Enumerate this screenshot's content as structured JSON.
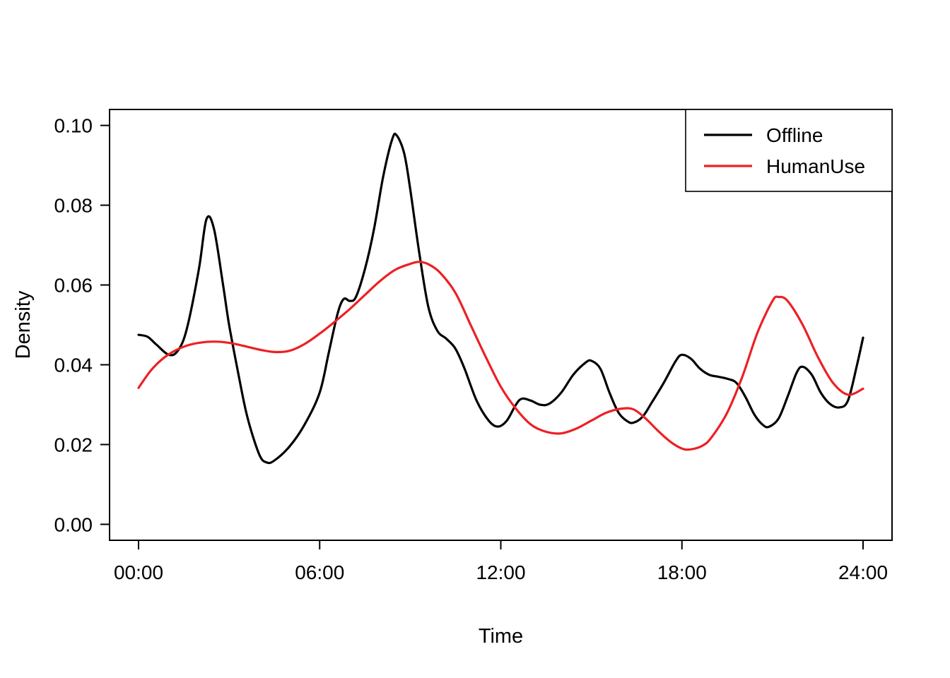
{
  "figure": {
    "background": "#ffffff"
  },
  "chart_data": {
    "type": "line",
    "title": "",
    "xlabel": "Time",
    "ylabel": "Density",
    "xlim": [
      0,
      24
    ],
    "ylim": [
      0,
      0.1
    ],
    "grid": false,
    "legend_position": "top-right",
    "x_ticks": [
      {
        "value": 0,
        "label": "00:00"
      },
      {
        "value": 6,
        "label": "06:00"
      },
      {
        "value": 12,
        "label": "12:00"
      },
      {
        "value": 18,
        "label": "18:00"
      },
      {
        "value": 24,
        "label": "24:00"
      }
    ],
    "y_ticks": [
      {
        "value": 0.0,
        "label": "0.00"
      },
      {
        "value": 0.02,
        "label": "0.02"
      },
      {
        "value": 0.04,
        "label": "0.04"
      },
      {
        "value": 0.06,
        "label": "0.06"
      },
      {
        "value": 0.08,
        "label": "0.08"
      },
      {
        "value": 0.1,
        "label": "0.10"
      }
    ],
    "series": [
      {
        "name": "Offline",
        "color": "#000000",
        "x": [
          0,
          0.3,
          0.6,
          1,
          1.3,
          1.6,
          2,
          2.25,
          2.5,
          2.8,
          3,
          3.3,
          3.6,
          4,
          4.25,
          4.5,
          5,
          5.5,
          6,
          6.3,
          6.6,
          6.8,
          7,
          7.2,
          7.5,
          7.8,
          8.1,
          8.4,
          8.55,
          8.8,
          9,
          9.3,
          9.6,
          9.9,
          10.2,
          10.5,
          10.8,
          11.2,
          11.6,
          11.9,
          12.2,
          12.5,
          12.7,
          13,
          13.3,
          13.6,
          14,
          14.4,
          14.8,
          15,
          15.3,
          15.6,
          15.9,
          16.2,
          16.4,
          16.7,
          17,
          17.4,
          17.8,
          18,
          18.3,
          18.6,
          18.9,
          19.2,
          19.5,
          19.8,
          20.1,
          20.4,
          20.7,
          20.9,
          21.2,
          21.5,
          21.8,
          22,
          22.3,
          22.6,
          22.9,
          23.2,
          23.5,
          23.8,
          24
        ],
        "y": [
          0.0475,
          0.047,
          0.045,
          0.0425,
          0.0435,
          0.049,
          0.064,
          0.0765,
          0.074,
          0.06,
          0.05,
          0.038,
          0.027,
          0.0175,
          0.0155,
          0.016,
          0.0195,
          0.025,
          0.033,
          0.043,
          0.053,
          0.0565,
          0.056,
          0.057,
          0.064,
          0.074,
          0.087,
          0.0965,
          0.0975,
          0.093,
          0.084,
          0.068,
          0.0545,
          0.0485,
          0.0465,
          0.044,
          0.039,
          0.031,
          0.026,
          0.0245,
          0.026,
          0.03,
          0.0315,
          0.031,
          0.03,
          0.0302,
          0.033,
          0.0375,
          0.0405,
          0.041,
          0.039,
          0.033,
          0.028,
          0.0258,
          0.0255,
          0.027,
          0.0305,
          0.0355,
          0.041,
          0.0425,
          0.0415,
          0.039,
          0.0375,
          0.037,
          0.0365,
          0.0355,
          0.032,
          0.0275,
          0.0248,
          0.0245,
          0.0265,
          0.032,
          0.038,
          0.0395,
          0.0375,
          0.033,
          0.0302,
          0.0293,
          0.031,
          0.04,
          0.0468
        ]
      },
      {
        "name": "HumanUse",
        "color": "#ED2024",
        "x": [
          0,
          0.4,
          0.8,
          1.2,
          1.6,
          2,
          2.5,
          3,
          3.5,
          4,
          4.5,
          5,
          5.5,
          6,
          6.5,
          7,
          7.5,
          8,
          8.5,
          9,
          9.3,
          9.6,
          10,
          10.5,
          11,
          11.5,
          12,
          12.5,
          13,
          13.5,
          14,
          14.5,
          15,
          15.5,
          16,
          16.4,
          16.8,
          17.2,
          17.6,
          18,
          18.3,
          18.7,
          19,
          19.5,
          20,
          20.5,
          21,
          21.2,
          21.5,
          22,
          22.5,
          23,
          23.5,
          24
        ],
        "y": [
          0.0342,
          0.0385,
          0.0415,
          0.0435,
          0.0448,
          0.0455,
          0.0458,
          0.0455,
          0.0447,
          0.0438,
          0.0432,
          0.0435,
          0.0452,
          0.0478,
          0.0508,
          0.054,
          0.0575,
          0.061,
          0.0638,
          0.0653,
          0.0658,
          0.0652,
          0.063,
          0.058,
          0.05,
          0.042,
          0.0345,
          0.029,
          0.025,
          0.0232,
          0.0228,
          0.024,
          0.026,
          0.028,
          0.029,
          0.0288,
          0.0265,
          0.0235,
          0.0208,
          0.019,
          0.0188,
          0.0198,
          0.022,
          0.028,
          0.037,
          0.048,
          0.056,
          0.057,
          0.056,
          0.05,
          0.042,
          0.0355,
          0.0325,
          0.034
        ]
      }
    ]
  }
}
